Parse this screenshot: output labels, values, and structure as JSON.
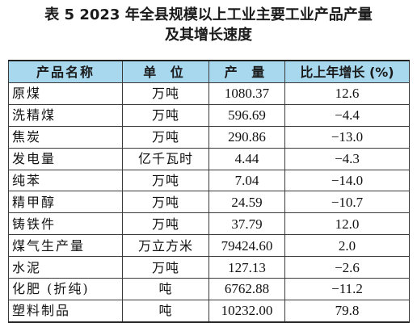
{
  "title": {
    "line1": "表 5  2023 年全县规模以上工业主要工业产品产量",
    "line2": "及其增长速度"
  },
  "columns": {
    "name": "产品名称",
    "unit": "单 位",
    "output": "产 量",
    "growth": "比上年增长 (%)"
  },
  "colors": {
    "header_bg": "#a8d8ee",
    "border": "#3a3a3a"
  },
  "rows": [
    {
      "name": "原煤",
      "unit": "万吨",
      "output": "1080.37",
      "growth": "12.6"
    },
    {
      "name": "洗精煤",
      "unit": "万吨",
      "output": "596.69",
      "growth": "−4.4"
    },
    {
      "name": "焦炭",
      "unit": "万吨",
      "output": "290.86",
      "growth": "−13.0"
    },
    {
      "name": "发电量",
      "unit": "亿千瓦时",
      "output": "4.44",
      "growth": "−4.3"
    },
    {
      "name": "纯苯",
      "unit": "万吨",
      "output": "7.04",
      "growth": "−14.0"
    },
    {
      "name": "精甲醇",
      "unit": "万吨",
      "output": "24.59",
      "growth": "−10.7"
    },
    {
      "name": "铸铁件",
      "unit": "万吨",
      "output": "37.79",
      "growth": "12.0"
    },
    {
      "name": "煤气生产量",
      "unit": "万立方米",
      "output": "79424.60",
      "growth": "2.0"
    },
    {
      "name": "水泥",
      "unit": "万吨",
      "output": "127.13",
      "growth": "−2.6"
    },
    {
      "name": "化肥 (折纯)",
      "unit": "吨",
      "output": "6762.88",
      "growth": "−11.2"
    },
    {
      "name": "塑料制品",
      "unit": "吨",
      "output": "10232.00",
      "growth": "79.8"
    }
  ]
}
